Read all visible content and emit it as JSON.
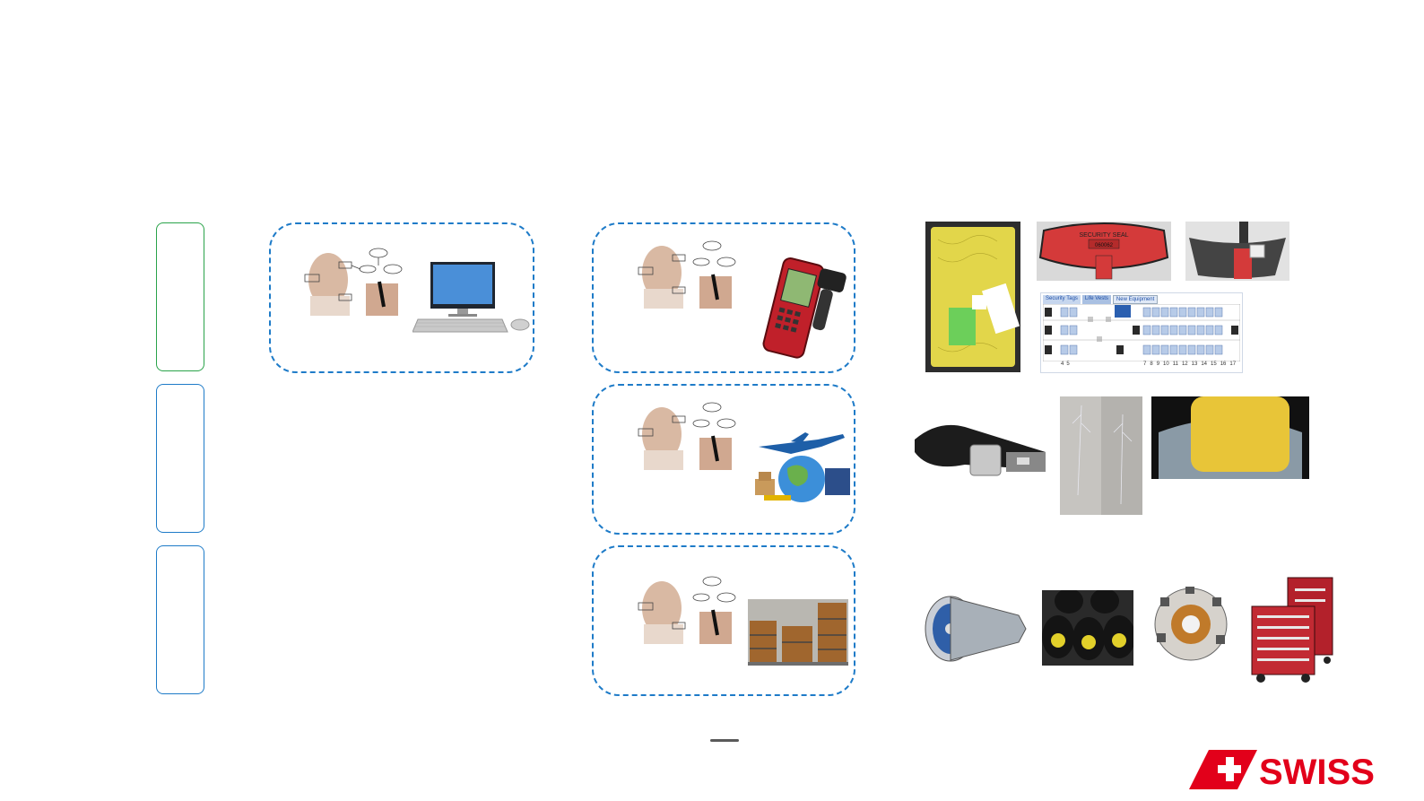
{
  "slide": {
    "row_marker_colors": [
      "#2aa34a",
      "#1e7bc8",
      "#1e7bc8"
    ],
    "dashed_box_color": "#1e7bc8"
  },
  "images": {
    "security_seal_text": "SECURITY SEAL",
    "security_seal_number": "060062",
    "tabs": [
      "Security Tags",
      "Life Vests",
      "New Equipment"
    ],
    "seat_numbers_left": [
      "4",
      "5"
    ],
    "seat_numbers_right": [
      "7",
      "8",
      "9",
      "10",
      "11",
      "12",
      "13",
      "14",
      "15",
      "16",
      "17"
    ]
  },
  "logo": {
    "brand": "SWISS",
    "color": "#e2001a"
  }
}
